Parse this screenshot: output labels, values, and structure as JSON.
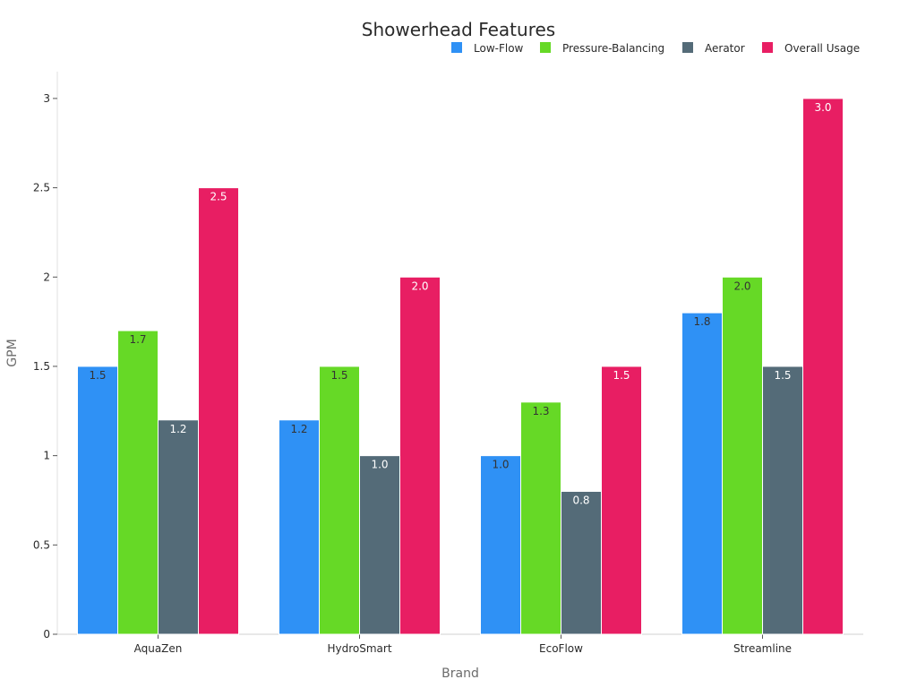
{
  "chart_data": {
    "type": "bar",
    "title": "Showerhead Features",
    "xlabel": "Brand",
    "ylabel": "GPM",
    "categories": [
      "AquaZen",
      "HydroSmart",
      "EcoFlow",
      "Streamline"
    ],
    "series": [
      {
        "name": "Low-Flow",
        "color": "#2f91f5",
        "label_color": "#333333",
        "values": [
          1.5,
          1.2,
          1.0,
          1.8
        ],
        "labels": [
          "1.5",
          "1.2",
          "1.0",
          "1.8"
        ]
      },
      {
        "name": "Pressure-Balancing",
        "color": "#66d926",
        "label_color": "#333333",
        "values": [
          1.7,
          1.5,
          1.3,
          2.0
        ],
        "labels": [
          "1.7",
          "1.5",
          "1.3",
          "2.0"
        ]
      },
      {
        "name": "Aerator",
        "color": "#546b78",
        "label_color": "#ffffff",
        "values": [
          1.2,
          1.0,
          0.8,
          1.5
        ],
        "labels": [
          "1.2",
          "1.0",
          "0.8",
          "1.5"
        ]
      },
      {
        "name": "Overall Usage",
        "color": "#e81e63",
        "label_color": "#ffffff",
        "values": [
          2.5,
          2.0,
          1.5,
          3.0
        ],
        "labels": [
          "2.5",
          "2.0",
          "1.5",
          "3.0"
        ]
      }
    ],
    "ylim": [
      0,
      3.15
    ],
    "yticks": [
      0,
      0.5,
      1,
      1.5,
      2,
      2.5,
      3
    ],
    "ytick_labels": [
      "0",
      "0.5",
      "1",
      "1.5",
      "2",
      "2.5",
      "3"
    ],
    "legend_position": "top-right",
    "grid": false
  }
}
